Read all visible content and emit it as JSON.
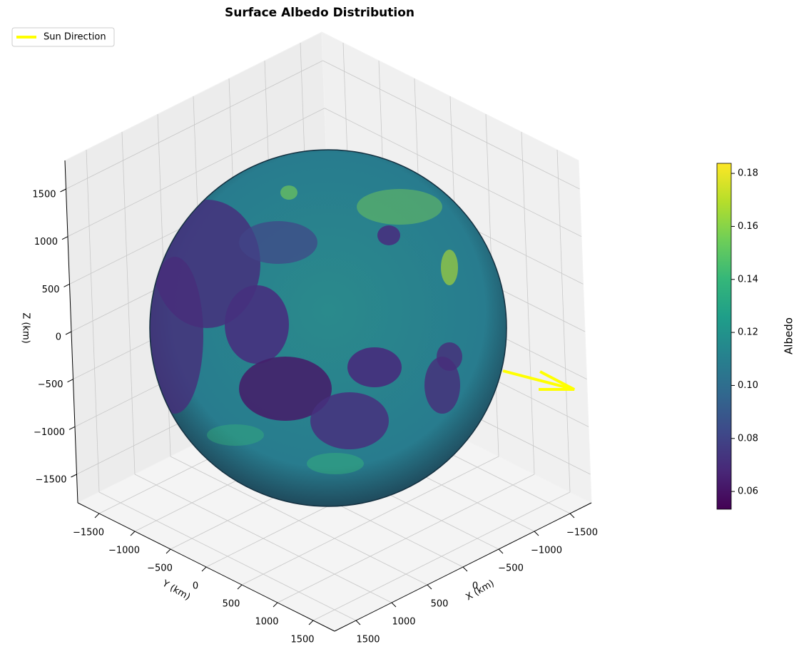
{
  "chart_data": {
    "type": "surface3d",
    "title": "Surface Albedo Distribution",
    "xlabel": "X (km)",
    "ylabel": "Y (km)",
    "zlabel": "Z (km)",
    "xlim": [
      -1800,
      1800
    ],
    "ylim": [
      -1800,
      1800
    ],
    "zlim": [
      -1800,
      1800
    ],
    "xticks": [
      {
        "value": -1500,
        "label": "−1500"
      },
      {
        "value": -1000,
        "label": "−1000"
      },
      {
        "value": -500,
        "label": "−500"
      },
      0,
      500,
      1000,
      1500
    ],
    "yticks": [
      {
        "value": -1500,
        "label": "−1500"
      },
      {
        "value": -1000,
        "label": "−1000"
      },
      {
        "value": -500,
        "label": "−500"
      },
      0,
      500,
      1000,
      1500
    ],
    "zticks": [
      {
        "value": -1500,
        "label": "−1500"
      },
      {
        "value": -1000,
        "label": "−1000"
      },
      {
        "value": -500,
        "label": "−500"
      },
      0,
      500,
      1000,
      1500
    ],
    "grid": true,
    "legend": {
      "loc": "upper left",
      "entries": [
        {
          "name": "Sun Direction",
          "color": "#ffff00"
        }
      ]
    },
    "colorbar": {
      "label": "Albedo",
      "colormap": "viridis",
      "lim": [
        0.0533,
        0.1838
      ],
      "ticks": [
        0.06,
        0.08,
        {
          "value": 0.1,
          "label": "0.10"
        },
        0.12,
        0.14,
        0.16,
        0.18
      ]
    }
  }
}
